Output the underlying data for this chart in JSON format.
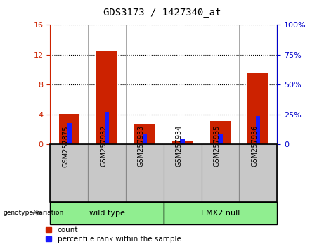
{
  "title": "GDS3173 / 1427340_at",
  "categories": [
    "GSM257875",
    "GSM257932",
    "GSM257933",
    "GSM257934",
    "GSM257935",
    "GSM257936"
  ],
  "red_values": [
    4.1,
    12.5,
    2.8,
    0.5,
    3.1,
    9.5
  ],
  "blue_pct": [
    18,
    27,
    9,
    5,
    9,
    24
  ],
  "ylim_left": [
    0,
    16
  ],
  "ylim_right": [
    0,
    100
  ],
  "yticks_left": [
    0,
    4,
    8,
    12,
    16
  ],
  "yticks_right": [
    0,
    25,
    50,
    75,
    100
  ],
  "group_labels": [
    "wild type",
    "EMX2 null"
  ],
  "group_ranges": [
    [
      0,
      3
    ],
    [
      3,
      6
    ]
  ],
  "group_color": "#90EE90",
  "geno_label": "genotype/variation",
  "legend_red": "count",
  "legend_blue": "percentile rank within the sample",
  "red_bar_width": 0.55,
  "blue_bar_width": 0.12,
  "left_axis_color": "#cc2200",
  "right_axis_color": "#0000cc",
  "title_fontsize": 10,
  "tick_fontsize": 8,
  "cat_fontsize": 7,
  "legend_fontsize": 7.5,
  "group_fontsize": 8
}
